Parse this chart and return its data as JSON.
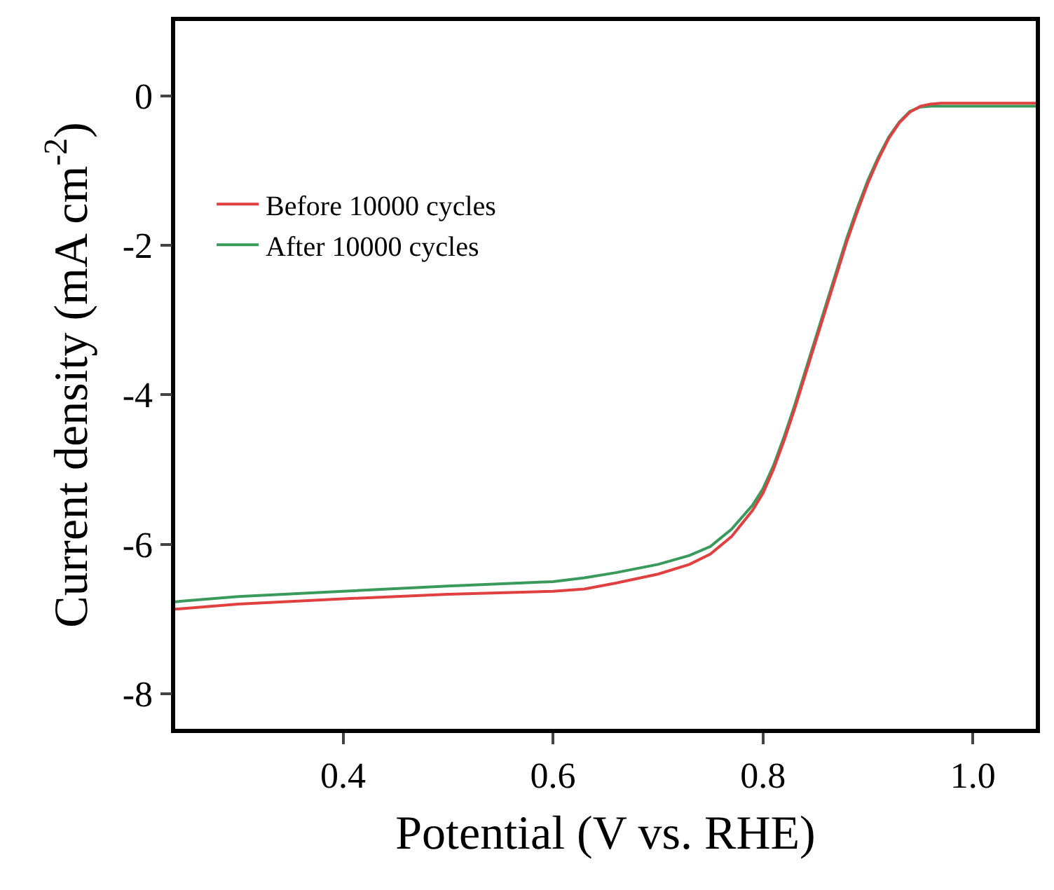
{
  "chart_data": {
    "type": "line",
    "xlabel": "Potential (V vs. RHE)",
    "ylabel": "Current density (mA cm$^{-2}$)",
    "xlim": [
      0.24,
      1.06
    ],
    "ylim": [
      -8.47,
      1.0
    ],
    "xticks": [
      {
        "value": 0.4,
        "label": "0.4"
      },
      {
        "value": 0.6,
        "label": "0.6"
      },
      {
        "value": 0.8,
        "label": "0.8"
      },
      {
        "value": 1.0,
        "label": "1.0"
      }
    ],
    "yticks": [
      -8,
      -6,
      -4,
      -2,
      0
    ],
    "legend": "left",
    "marker": "none",
    "line_style": "solid",
    "series": [
      {
        "name": "Before 10000 cycles",
        "color": "#e04040",
        "x": [
          0.24,
          0.3,
          0.4,
          0.5,
          0.6,
          0.63,
          0.66,
          0.7,
          0.73,
          0.75,
          0.77,
          0.79,
          0.8,
          0.81,
          0.82,
          0.83,
          0.84,
          0.85,
          0.86,
          0.87,
          0.88,
          0.89,
          0.9,
          0.91,
          0.92,
          0.93,
          0.94,
          0.95,
          0.96,
          0.97,
          0.98,
          1.0,
          1.06
        ],
        "values": [
          -6.87,
          -6.8,
          -6.73,
          -6.67,
          -6.63,
          -6.6,
          -6.52,
          -6.4,
          -6.27,
          -6.13,
          -5.9,
          -5.55,
          -5.32,
          -5.0,
          -4.62,
          -4.2,
          -3.75,
          -3.3,
          -2.85,
          -2.4,
          -1.95,
          -1.55,
          -1.17,
          -0.85,
          -0.57,
          -0.36,
          -0.22,
          -0.14,
          -0.11,
          -0.1,
          -0.1,
          -0.1,
          -0.1
        ]
      },
      {
        "name": "After 10000 cycles",
        "color": "#3a9a5c",
        "x": [
          0.24,
          0.3,
          0.4,
          0.5,
          0.6,
          0.63,
          0.66,
          0.7,
          0.73,
          0.75,
          0.77,
          0.79,
          0.8,
          0.81,
          0.82,
          0.83,
          0.84,
          0.85,
          0.86,
          0.87,
          0.88,
          0.89,
          0.9,
          0.91,
          0.92,
          0.93,
          0.94,
          0.95,
          0.96,
          0.97,
          0.98,
          1.0,
          1.06
        ],
        "values": [
          -6.77,
          -6.7,
          -6.63,
          -6.56,
          -6.5,
          -6.45,
          -6.38,
          -6.27,
          -6.15,
          -6.03,
          -5.8,
          -5.48,
          -5.26,
          -4.95,
          -4.57,
          -4.15,
          -3.7,
          -3.25,
          -2.8,
          -2.35,
          -1.9,
          -1.5,
          -1.13,
          -0.82,
          -0.55,
          -0.35,
          -0.21,
          -0.15,
          -0.14,
          -0.14,
          -0.14,
          -0.14,
          -0.14
        ]
      }
    ]
  }
}
